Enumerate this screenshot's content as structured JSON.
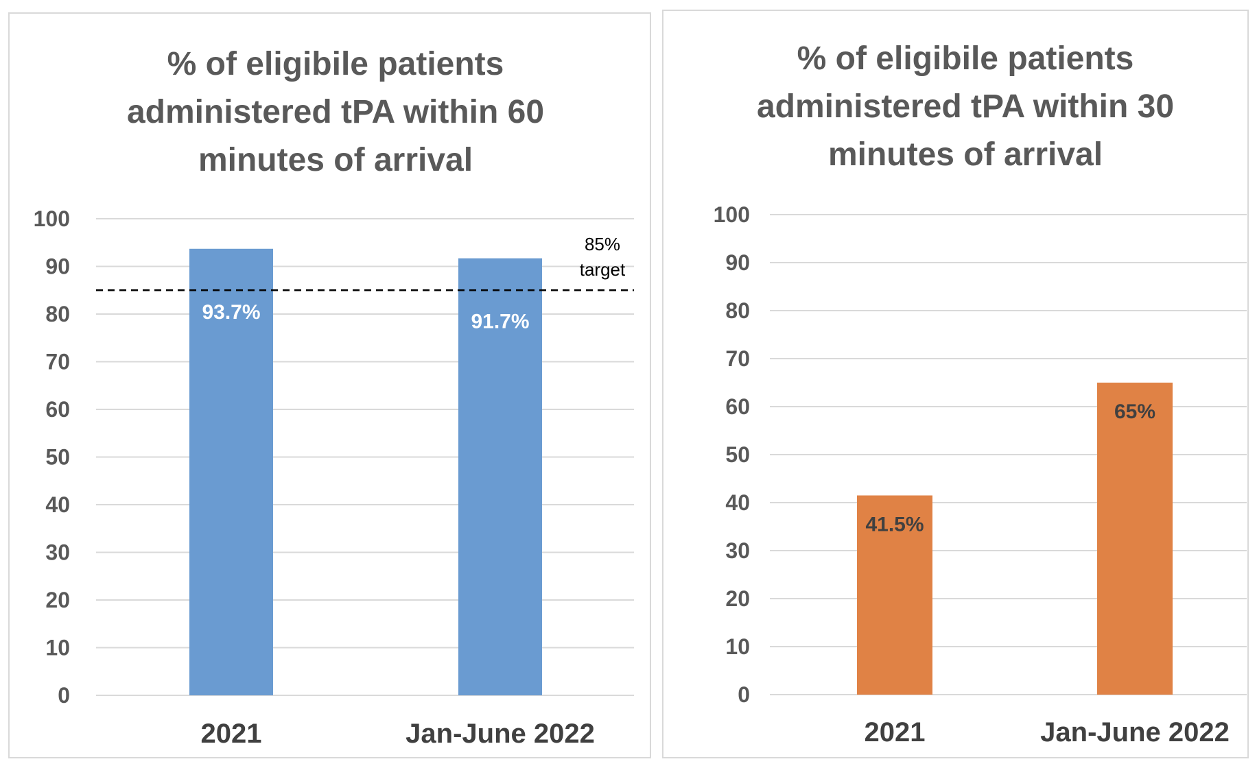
{
  "chart_data": [
    {
      "type": "bar",
      "title_lines": [
        "% of eligibile patients",
        "administered tPA within 60",
        "minutes of arrival"
      ],
      "categories": [
        "2021",
        "Jan-June 2022"
      ],
      "series": [
        {
          "values": [
            93.7,
            91.7
          ],
          "color": "#6a9bd1",
          "data_labels": [
            "93.7%",
            "91.7%"
          ],
          "label_color": "#ffffff"
        }
      ],
      "ylim": [
        0,
        100
      ],
      "yticks": [
        "0",
        "10",
        "20",
        "30",
        "40",
        "50",
        "60",
        "70",
        "80",
        "90",
        "100"
      ],
      "grid": true,
      "target": {
        "value": 85,
        "label_lines": [
          "85%",
          "target"
        ],
        "style": "dashed",
        "color": "#000000"
      }
    },
    {
      "type": "bar",
      "title_lines": [
        "% of eligibile patients",
        "administered tPA within 30",
        "minutes of arrival"
      ],
      "categories": [
        "2021",
        "Jan-June 2022"
      ],
      "series": [
        {
          "values": [
            41.5,
            65
          ],
          "color": "#e08245",
          "data_labels": [
            "41.5%",
            "65%"
          ],
          "label_color": "#404040"
        }
      ],
      "ylim": [
        0,
        100
      ],
      "yticks": [
        "0",
        "10",
        "20",
        "30",
        "40",
        "50",
        "60",
        "70",
        "80",
        "90",
        "100"
      ],
      "grid": true
    }
  ]
}
